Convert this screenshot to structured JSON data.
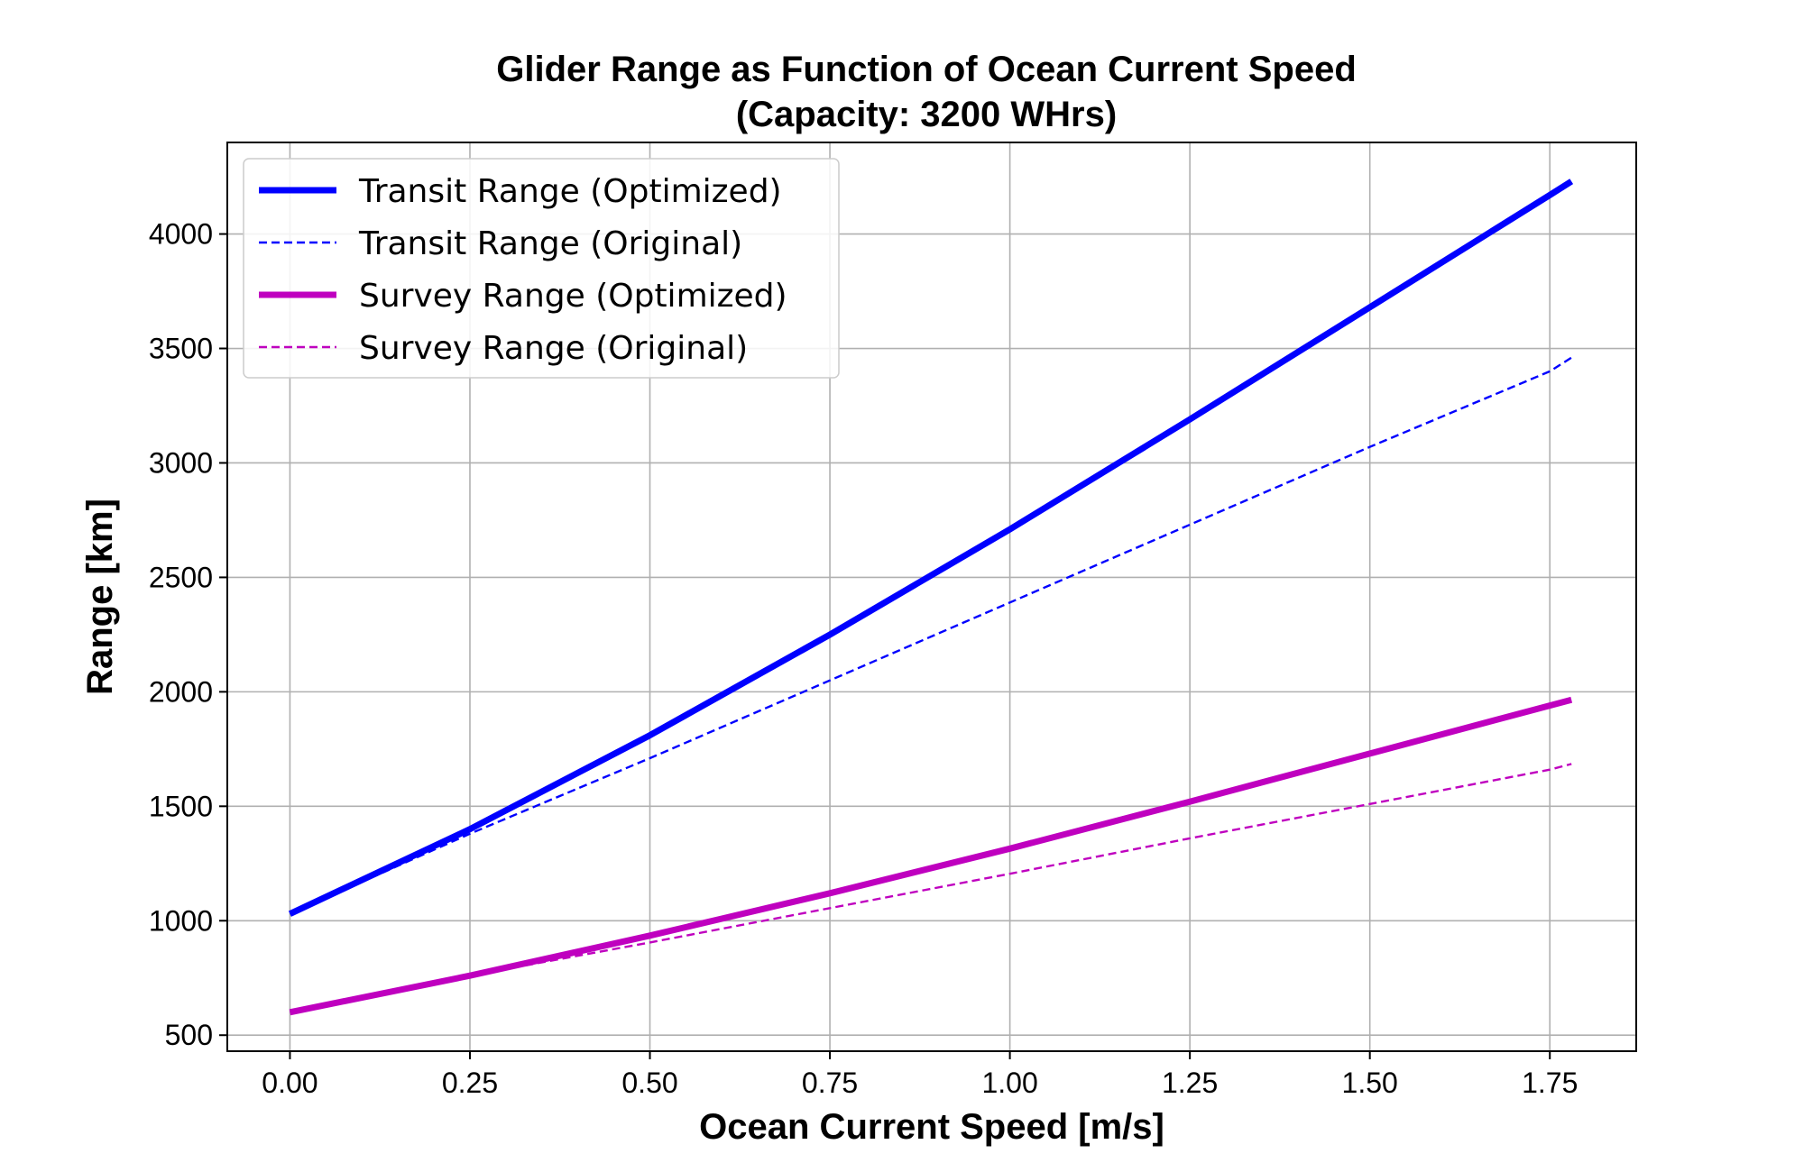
{
  "chart_data": {
    "type": "line",
    "title": "Glider Range as Function of Ocean Current Speed",
    "subtitle": "(Capacity: 3200 WHrs)",
    "xlabel": "Ocean Current Speed [m/s]",
    "ylabel": "Range [km]",
    "xlim": [
      -0.087,
      1.87
    ],
    "ylim": [
      430,
      4400
    ],
    "xticks": [
      0.0,
      0.25,
      0.5,
      0.75,
      1.0,
      1.25,
      1.5,
      1.75
    ],
    "xtick_labels": [
      "0.00",
      "0.25",
      "0.50",
      "0.75",
      "1.00",
      "1.25",
      "1.50",
      "1.75"
    ],
    "yticks": [
      500,
      1000,
      1500,
      2000,
      2500,
      3000,
      3500,
      4000
    ],
    "ytick_labels": [
      "500",
      "1000",
      "1500",
      "2000",
      "2500",
      "3000",
      "3500",
      "4000"
    ],
    "grid": true,
    "legend_position": "top-left",
    "x": [
      0.0,
      0.25,
      0.5,
      0.75,
      1.0,
      1.25,
      1.5,
      1.75,
      1.78
    ],
    "series": [
      {
        "name": "Transit Range (Optimized)",
        "color": "#0000ff",
        "style": "solid",
        "values": [
          1030,
          1400,
          1810,
          2250,
          2710,
          3190,
          3680,
          4170,
          4230
        ]
      },
      {
        "name": "Transit Range (Original)",
        "color": "#0000ff",
        "style": "dashed",
        "values": [
          1030,
          1380,
          1710,
          2050,
          2390,
          2730,
          3070,
          3400,
          3460
        ]
      },
      {
        "name": "Survey Range (Optimized)",
        "color": "#bf00bf",
        "style": "solid",
        "values": [
          600,
          760,
          935,
          1120,
          1315,
          1520,
          1730,
          1940,
          1965
        ]
      },
      {
        "name": "Survey Range (Original)",
        "color": "#bf00bf",
        "style": "dashed",
        "values": [
          600,
          760,
          905,
          1055,
          1205,
          1360,
          1510,
          1660,
          1685
        ]
      }
    ]
  }
}
